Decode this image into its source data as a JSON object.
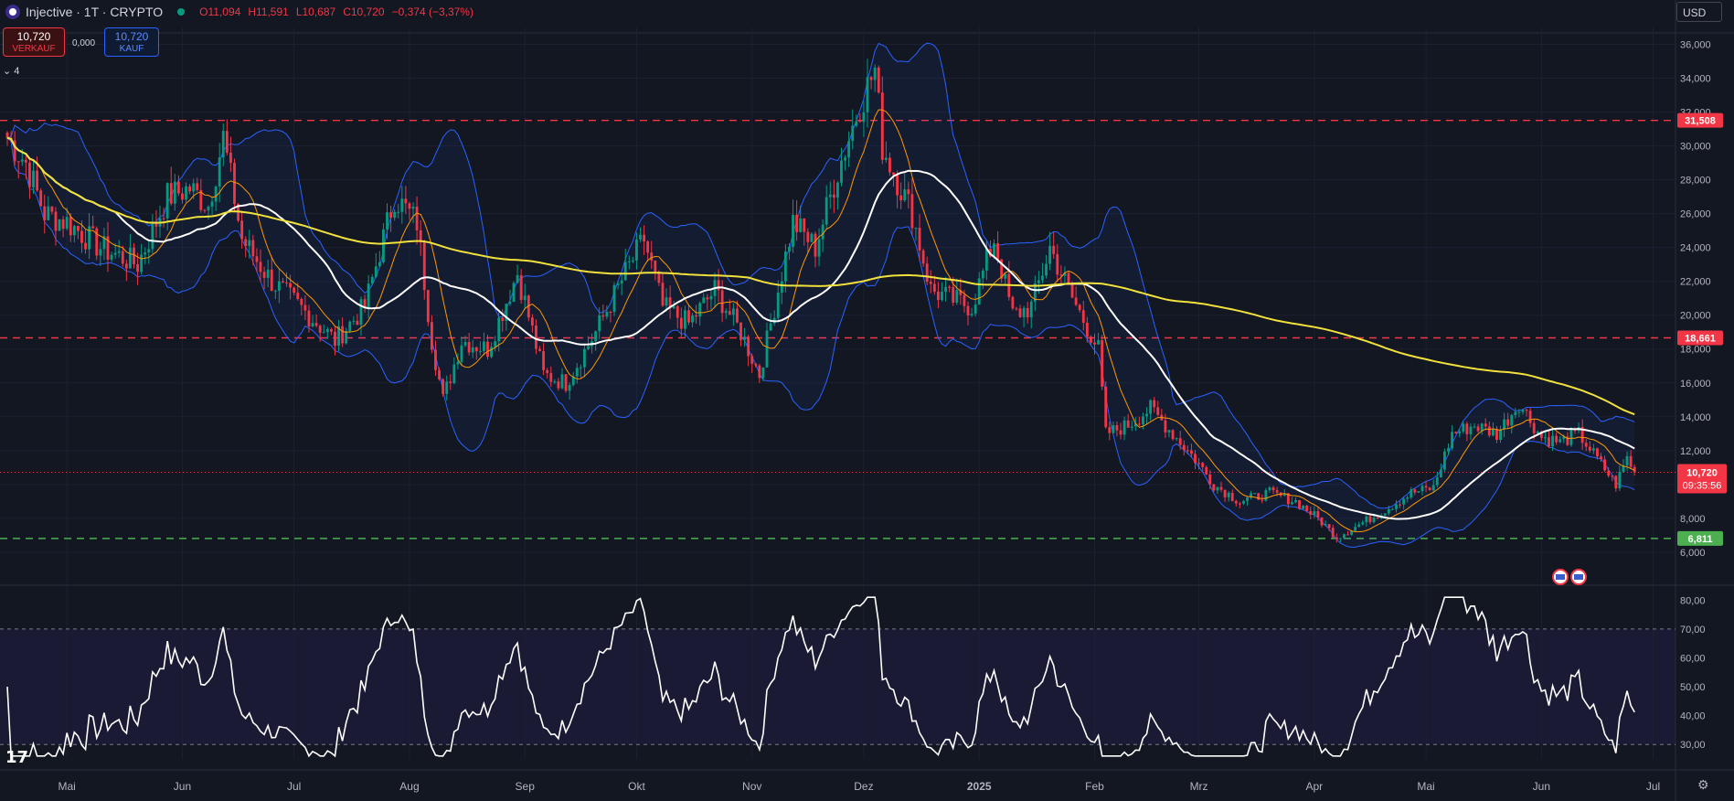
{
  "header": {
    "symbol": "Injective · 1T · CRYPTO",
    "open": "O11,094",
    "high": "H11,591",
    "low": "L10,687",
    "close": "C10,720",
    "change": "−0,374 (−3,37%)"
  },
  "trade": {
    "sell_price": "10,720",
    "sell_label": "VERKAUF",
    "spread": "0,000",
    "buy_price": "10,720",
    "buy_label": "KAUF"
  },
  "indicator_toggle": "4",
  "currency": "USD",
  "colors": {
    "background": "#131722",
    "up": "#089981",
    "down": "#f23645",
    "bollinger": "#2962ff",
    "ma_long": "#f1e13c",
    "ma_mid": "#ffffff",
    "ma_fast": "#ff9800",
    "support": "#4caf50"
  },
  "icons": {
    "logo": "injective-logo-icon",
    "status": "market-open-dot-icon",
    "settings": "gear-icon",
    "brand": "tradingview-logo-icon",
    "events": "us-flag-event-icon"
  },
  "chart_data": {
    "type": "candlestick",
    "price_axis": {
      "ticks": [
        "36,000",
        "34,000",
        "32,000",
        "30,000",
        "28,000",
        "26,000",
        "24,000",
        "22,000",
        "20,000",
        "18,000",
        "16,000",
        "14,000",
        "12,000",
        "10,000",
        "8,000",
        "6,000"
      ],
      "ylim": [
        5.4,
        37.0
      ]
    },
    "time_axis": {
      "labels": [
        "Mai",
        "Jun",
        "Jul",
        "Aug",
        "Sep",
        "Okt",
        "Nov",
        "Dez",
        "2025",
        "Feb",
        "Mrz",
        "Apr",
        "Mai",
        "Jun",
        "Jul"
      ],
      "bold": [
        "2025"
      ]
    },
    "horizontal_lines": [
      {
        "value": 31.508,
        "label": "31,508",
        "style": "dashed",
        "color": "#f23645"
      },
      {
        "value": 18.661,
        "label": "18,661",
        "style": "dashed",
        "color": "#f23645"
      },
      {
        "value": 6.811,
        "label": "6,811",
        "style": "dashed",
        "color": "#4caf50"
      }
    ],
    "last_price": {
      "value": 10.72,
      "label": "10,720",
      "countdown": "09:35:56"
    },
    "price_anchors": [
      [
        "2024-04-15",
        30.5
      ],
      [
        "2024-04-20",
        29.0
      ],
      [
        "2024-04-25",
        26.0
      ],
      [
        "2024-05-01",
        25.5
      ],
      [
        "2024-05-10",
        24.0
      ],
      [
        "2024-05-20",
        23.0
      ],
      [
        "2024-05-28",
        27.0
      ],
      [
        "2024-06-03",
        27.5
      ],
      [
        "2024-06-08",
        26.5
      ],
      [
        "2024-06-12",
        30.5
      ],
      [
        "2024-06-17",
        24.5
      ],
      [
        "2024-06-25",
        22.0
      ],
      [
        "2024-07-05",
        20.0
      ],
      [
        "2024-07-12",
        18.5
      ],
      [
        "2024-07-20",
        20.5
      ],
      [
        "2024-07-28",
        27.0
      ],
      [
        "2024-08-03",
        25.5
      ],
      [
        "2024-08-07",
        18.5
      ],
      [
        "2024-08-10",
        15.0
      ],
      [
        "2024-08-15",
        18.5
      ],
      [
        "2024-08-22",
        18.0
      ],
      [
        "2024-08-30",
        22.5
      ],
      [
        "2024-09-06",
        16.5
      ],
      [
        "2024-09-12",
        16.0
      ],
      [
        "2024-09-20",
        19.0
      ],
      [
        "2024-09-28",
        22.5
      ],
      [
        "2024-10-03",
        24.5
      ],
      [
        "2024-10-08",
        20.5
      ],
      [
        "2024-10-15",
        19.5
      ],
      [
        "2024-10-22",
        21.5
      ],
      [
        "2024-10-29",
        19.0
      ],
      [
        "2024-11-03",
        16.5
      ],
      [
        "2024-11-06",
        19.5
      ],
      [
        "2024-11-12",
        25.5
      ],
      [
        "2024-11-18",
        24.0
      ],
      [
        "2024-11-24",
        28.5
      ],
      [
        "2024-11-30",
        32.5
      ],
      [
        "2024-12-04",
        34.5
      ],
      [
        "2024-12-06",
        30.0
      ],
      [
        "2024-12-10",
        28.0
      ],
      [
        "2024-12-14",
        26.0
      ],
      [
        "2024-12-19",
        21.5
      ],
      [
        "2024-12-24",
        21.0
      ],
      [
        "2024-12-30",
        20.5
      ],
      [
        "2025-01-05",
        24.5
      ],
      [
        "2025-01-10",
        20.0
      ],
      [
        "2025-01-15",
        20.5
      ],
      [
        "2025-01-20",
        24.0
      ],
      [
        "2025-01-26",
        21.0
      ],
      [
        "2025-02-02",
        18.0
      ],
      [
        "2025-02-04",
        13.0
      ],
      [
        "2025-02-10",
        13.5
      ],
      [
        "2025-02-16",
        14.5
      ],
      [
        "2025-02-22",
        13.0
      ],
      [
        "2025-02-28",
        11.5
      ],
      [
        "2025-03-05",
        10.0
      ],
      [
        "2025-03-12",
        9.0
      ],
      [
        "2025-03-20",
        9.5
      ],
      [
        "2025-03-27",
        9.0
      ],
      [
        "2025-04-02",
        8.0
      ],
      [
        "2025-04-07",
        6.9
      ],
      [
        "2025-04-12",
        7.5
      ],
      [
        "2025-04-20",
        8.5
      ],
      [
        "2025-04-27",
        9.5
      ],
      [
        "2025-05-03",
        9.8
      ],
      [
        "2025-05-08",
        13.0
      ],
      [
        "2025-05-14",
        13.5
      ],
      [
        "2025-05-20",
        13.0
      ],
      [
        "2025-05-26",
        14.8
      ],
      [
        "2025-06-01",
        12.8
      ],
      [
        "2025-06-06",
        12.5
      ],
      [
        "2025-06-11",
        13.0
      ],
      [
        "2025-06-16",
        11.5
      ],
      [
        "2025-06-21",
        10.0
      ],
      [
        "2025-06-24",
        11.6
      ],
      [
        "2025-06-26",
        10.72
      ]
    ],
    "rsi": {
      "ticks": [
        "80,00",
        "70,00",
        "60,00",
        "50,00",
        "40,00",
        "30,00"
      ],
      "ylim": [
        25,
        82
      ],
      "upper_band": 70,
      "lower_band": 30
    }
  }
}
